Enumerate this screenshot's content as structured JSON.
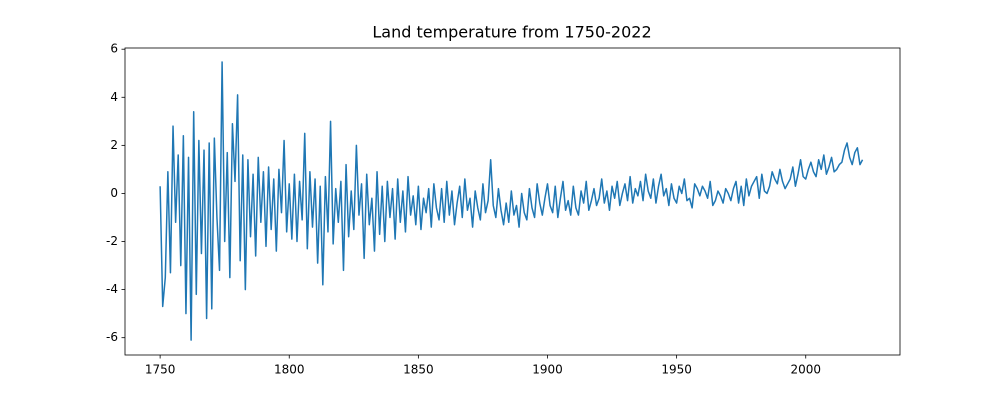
{
  "chart_data": {
    "type": "line",
    "title": "Land temperature from 1750-2022",
    "color": "#1f77b4",
    "xlim": [
      1736.4,
      2036.5
    ],
    "xticks": [
      1750,
      1800,
      1850,
      1900,
      1950,
      2000
    ],
    "ylim": [
      -6.72,
      6.05
    ],
    "yticks": [
      -6,
      -4,
      -2,
      0,
      2,
      4,
      6
    ],
    "x": [
      1750,
      1751,
      1752,
      1753,
      1754,
      1755,
      1756,
      1757,
      1758,
      1759,
      1760,
      1761,
      1762,
      1763,
      1764,
      1765,
      1766,
      1767,
      1768,
      1769,
      1770,
      1771,
      1772,
      1773,
      1774,
      1775,
      1776,
      1777,
      1778,
      1779,
      1780,
      1781,
      1782,
      1783,
      1784,
      1785,
      1786,
      1787,
      1788,
      1789,
      1790,
      1791,
      1792,
      1793,
      1794,
      1795,
      1796,
      1797,
      1798,
      1799,
      1800,
      1801,
      1802,
      1803,
      1804,
      1805,
      1806,
      1807,
      1808,
      1809,
      1810,
      1811,
      1812,
      1813,
      1814,
      1815,
      1816,
      1817,
      1818,
      1819,
      1820,
      1821,
      1822,
      1823,
      1824,
      1825,
      1826,
      1827,
      1828,
      1829,
      1830,
      1831,
      1832,
      1833,
      1834,
      1835,
      1836,
      1837,
      1838,
      1839,
      1840,
      1841,
      1842,
      1843,
      1844,
      1845,
      1846,
      1847,
      1848,
      1849,
      1850,
      1851,
      1852,
      1853,
      1854,
      1855,
      1856,
      1857,
      1858,
      1859,
      1860,
      1861,
      1862,
      1863,
      1864,
      1865,
      1866,
      1867,
      1868,
      1869,
      1870,
      1871,
      1872,
      1873,
      1874,
      1875,
      1876,
      1877,
      1878,
      1879,
      1880,
      1881,
      1882,
      1883,
      1884,
      1885,
      1886,
      1887,
      1888,
      1889,
      1890,
      1891,
      1892,
      1893,
      1894,
      1895,
      1896,
      1897,
      1898,
      1899,
      1900,
      1901,
      1902,
      1903,
      1904,
      1905,
      1906,
      1907,
      1908,
      1909,
      1910,
      1911,
      1912,
      1913,
      1914,
      1915,
      1916,
      1917,
      1918,
      1919,
      1920,
      1921,
      1922,
      1923,
      1924,
      1925,
      1926,
      1927,
      1928,
      1929,
      1930,
      1931,
      1932,
      1933,
      1934,
      1935,
      1936,
      1937,
      1938,
      1939,
      1940,
      1941,
      1942,
      1943,
      1944,
      1945,
      1946,
      1947,
      1948,
      1949,
      1950,
      1951,
      1952,
      1953,
      1954,
      1955,
      1956,
      1957,
      1958,
      1959,
      1960,
      1961,
      1962,
      1963,
      1964,
      1965,
      1966,
      1967,
      1968,
      1969,
      1970,
      1971,
      1972,
      1973,
      1974,
      1975,
      1976,
      1977,
      1978,
      1979,
      1980,
      1981,
      1982,
      1983,
      1984,
      1985,
      1986,
      1987,
      1988,
      1989,
      1990,
      1991,
      1992,
      1993,
      1994,
      1995,
      1996,
      1997,
      1998,
      1999,
      2000,
      2001,
      2002,
      2003,
      2004,
      2005,
      2006,
      2007,
      2008,
      2009,
      2010,
      2011,
      2012,
      2013,
      2014,
      2015,
      2016,
      2017,
      2018,
      2019,
      2020,
      2021,
      2022
    ],
    "values": [
      0.3,
      -4.7,
      -3.5,
      0.9,
      -3.3,
      2.8,
      -1.2,
      1.6,
      -3.0,
      2.4,
      -5.0,
      1.5,
      -6.1,
      3.4,
      -4.2,
      2.2,
      -2.5,
      1.8,
      -5.2,
      2.1,
      -4.8,
      2.3,
      -1.0,
      -3.2,
      5.47,
      -2.0,
      1.7,
      -3.5,
      2.9,
      0.5,
      4.1,
      -2.8,
      1.6,
      -4.0,
      1.4,
      -1.8,
      0.8,
      -2.6,
      1.5,
      -1.2,
      0.9,
      -2.2,
      1.1,
      -1.5,
      0.6,
      -2.4,
      1.0,
      -0.8,
      2.2,
      -1.6,
      0.4,
      -1.9,
      0.8,
      -2.0,
      0.5,
      -1.1,
      2.5,
      -2.3,
      0.9,
      -1.4,
      0.6,
      -2.9,
      0.3,
      -3.8,
      0.7,
      -1.6,
      3.0,
      -2.1,
      0.2,
      -1.2,
      0.5,
      -3.2,
      1.2,
      -1.8,
      0.1,
      -1.5,
      2.0,
      -0.9,
      0.4,
      -2.7,
      0.8,
      -1.3,
      -0.2,
      -2.4,
      0.9,
      -1.7,
      0.3,
      -2.0,
      0.5,
      -1.0,
      0.2,
      -1.9,
      0.6,
      -1.2,
      0.1,
      -1.6,
      0.7,
      -0.9,
      -0.1,
      -1.3,
      0.3,
      -1.5,
      -0.2,
      -0.8,
      0.2,
      -1.4,
      0.4,
      -0.6,
      -1.1,
      0.2,
      -1.2,
      0.5,
      -0.9,
      0.1,
      -1.3,
      -0.4,
      0.3,
      -1.0,
      0.6,
      -0.7,
      -0.2,
      -1.4,
      0.1,
      -0.6,
      -1.1,
      0.4,
      -0.8,
      -0.3,
      1.4,
      -0.5,
      -1.0,
      0.2,
      -0.7,
      -1.3,
      -0.4,
      -1.2,
      0.1,
      -0.9,
      -0.5,
      -1.4,
      0.0,
      -0.8,
      -1.1,
      0.2,
      -0.6,
      -1.0,
      0.4,
      -0.4,
      -0.9,
      -0.2,
      0.4,
      -0.5,
      -0.8,
      0.3,
      -1.0,
      -0.2,
      0.5,
      -0.7,
      -0.3,
      -0.9,
      0.3,
      -0.6,
      -0.9,
      0.1,
      -0.4,
      0.5,
      -0.7,
      -0.3,
      0.2,
      -0.5,
      -0.2,
      0.6,
      -0.4,
      0.1,
      -0.7,
      0.3,
      -0.2,
      0.5,
      -0.5,
      0.0,
      0.4,
      -0.3,
      0.7,
      -0.4,
      0.2,
      -0.1,
      0.5,
      -0.3,
      0.8,
      0.1,
      -0.2,
      0.6,
      -0.4,
      0.3,
      0.8,
      -0.1,
      0.2,
      -0.5,
      0.4,
      -0.2,
      -0.4,
      0.3,
      0.0,
      0.6,
      -0.3,
      -0.2,
      -0.6,
      0.4,
      0.2,
      -0.1,
      0.3,
      0.1,
      -0.2,
      0.5,
      -0.5,
      -0.3,
      0.1,
      -0.1,
      -0.4,
      0.2,
      0.0,
      -0.3,
      0.2,
      0.5,
      -0.4,
      0.3,
      -0.5,
      0.6,
      -0.1,
      0.3,
      0.5,
      0.7,
      -0.2,
      0.8,
      0.1,
      0.0,
      0.3,
      0.9,
      0.6,
      0.4,
      1.0,
      0.5,
      0.2,
      0.4,
      0.6,
      1.1,
      0.3,
      0.8,
      1.4,
      0.7,
      0.6,
      1.0,
      1.3,
      0.9,
      0.7,
      1.4,
      1.0,
      1.6,
      0.8,
      1.1,
      1.5,
      0.9,
      1.0,
      1.2,
      1.3,
      1.8,
      2.1,
      1.5,
      1.2,
      1.7,
      1.9,
      1.2,
      1.4
    ]
  }
}
